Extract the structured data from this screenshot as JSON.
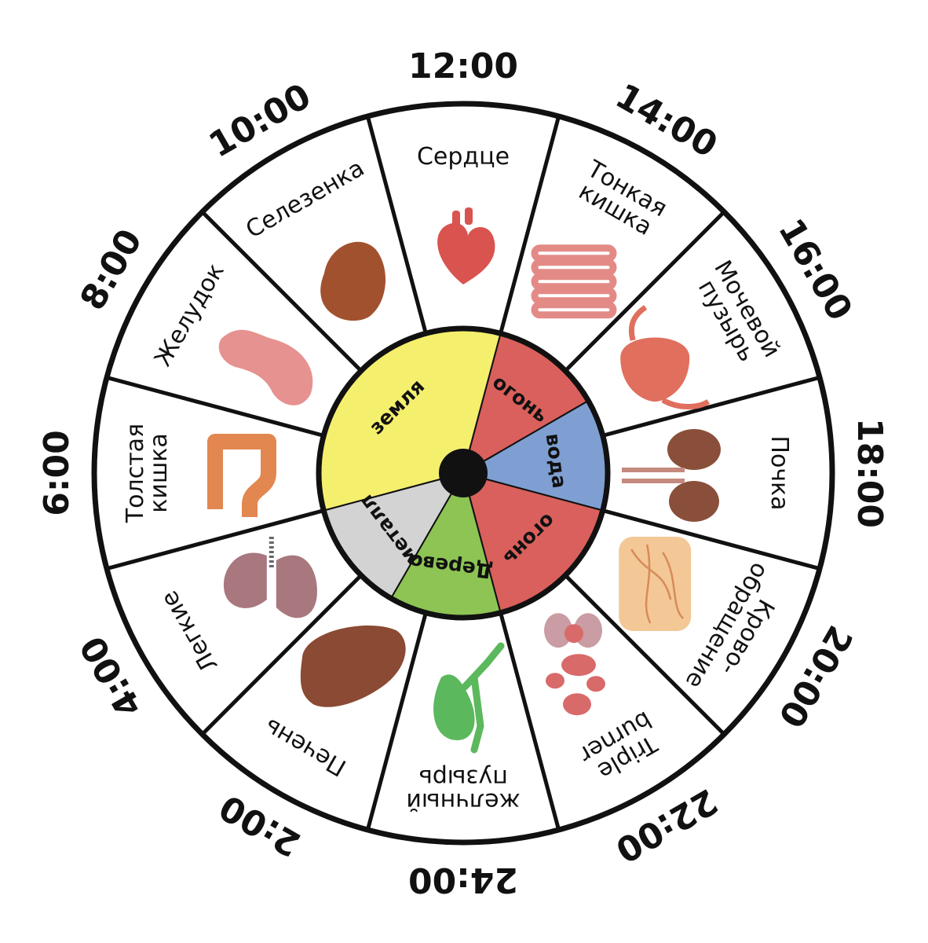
{
  "clock": {
    "times": [
      "12:00",
      "14:00",
      "16:00",
      "18:00",
      "20:00",
      "22:00",
      "24:00",
      "2:00",
      "4:00",
      "6:00",
      "8:00",
      "10:00"
    ],
    "organs": [
      {
        "label": "Сердце",
        "icon": "heart-icon",
        "color": "#d9534f"
      },
      {
        "label": "Тонкая\nкишка",
        "icon": "small-intestine-icon",
        "color": "#e48a86"
      },
      {
        "label": "Мочевой\nпузырь",
        "icon": "bladder-icon",
        "color": "#e06f5e"
      },
      {
        "label": "Почка",
        "icon": "kidney-icon",
        "color": "#8a4f3a"
      },
      {
        "label": "Крово-\nобращение",
        "icon": "circulation-icon",
        "color": "#f3c896"
      },
      {
        "label": "Triple\nburner",
        "icon": "triple-burner-icon",
        "color": "#d96a6a"
      },
      {
        "label": "желчный\nпузырь",
        "icon": "gallbladder-icon",
        "color": "#5cb85c"
      },
      {
        "label": "Печень",
        "icon": "liver-icon",
        "color": "#8b4a33"
      },
      {
        "label": "Легкие",
        "icon": "lungs-icon",
        "color": "#a8787e"
      },
      {
        "label": "Толстая\nкишка",
        "icon": "large-intestine-icon",
        "color": "#e2874f"
      },
      {
        "label": "Желудок",
        "icon": "stomach-icon",
        "color": "#e69290"
      },
      {
        "label": "Селезенка",
        "icon": "spleen-icon",
        "color": "#a2512e"
      }
    ]
  },
  "elements": [
    {
      "label": "огонь",
      "color": "#d9605c"
    },
    {
      "label": "вода",
      "color": "#7f9fd2"
    },
    {
      "label": "огонь",
      "color": "#d9605c"
    },
    {
      "label": "Дерево",
      "color": "#8dc454"
    },
    {
      "label": "металл",
      "color": "#d3d3d3"
    },
    {
      "label": "земля",
      "color": "#f5ef6e"
    }
  ],
  "colors": {
    "outline": "#111111",
    "hub": "#111111",
    "background": "#ffffff"
  }
}
